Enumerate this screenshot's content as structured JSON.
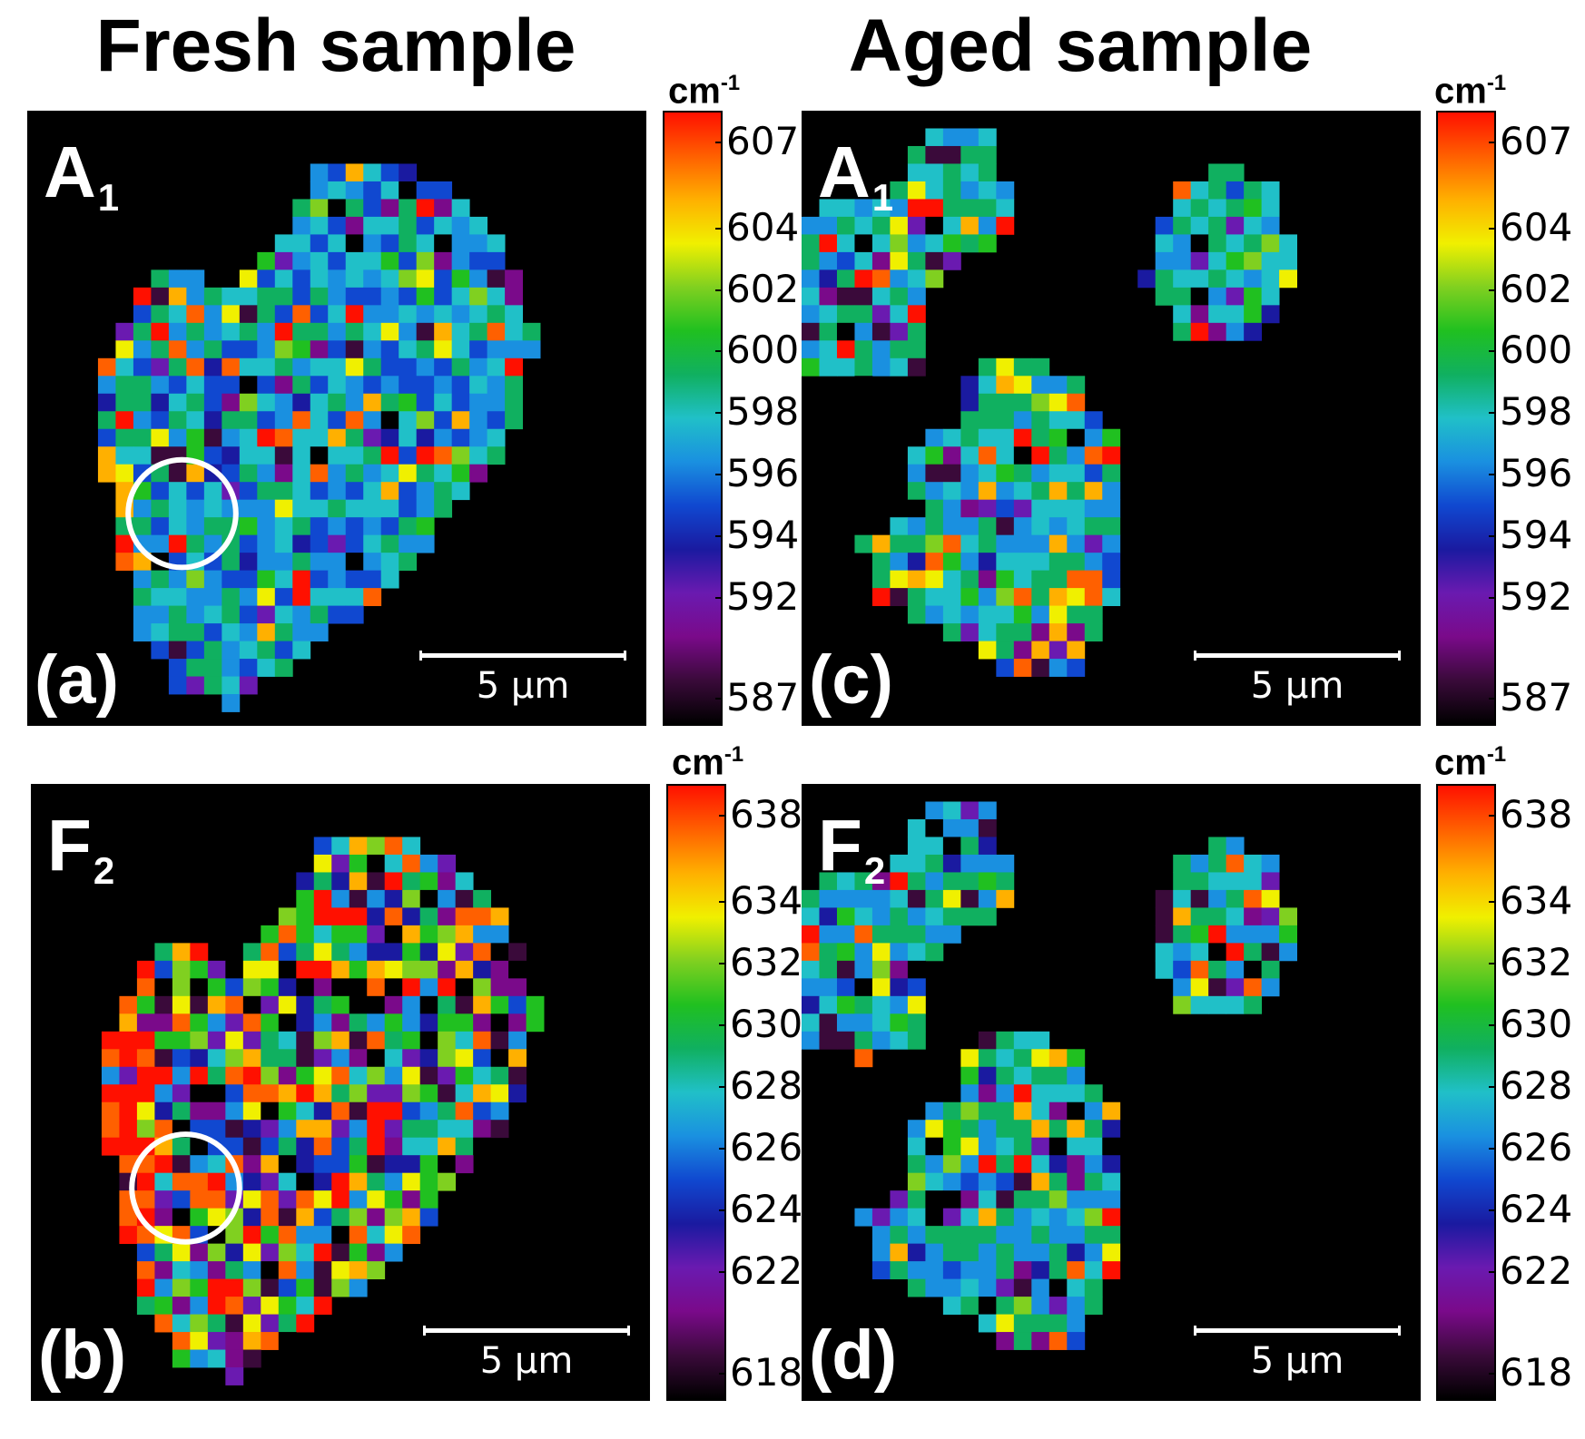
{
  "titles": {
    "fresh": "Fresh sample",
    "aged": "Aged sample"
  },
  "colormap": [
    "#000000",
    "#3a0a3a",
    "#7a0a8a",
    "#6a1ab0",
    "#1a1aa0",
    "#1048d0",
    "#1a90e0",
    "#20c0c8",
    "#10b060",
    "#20c020",
    "#80d020",
    "#f0f000",
    "#ffb000",
    "#ff6000",
    "#ff1000"
  ],
  "chart_data": [
    {
      "type": "heatmap",
      "id": "a",
      "label": "(a)",
      "mode": "A",
      "mode_sub": "1",
      "sample": "Fresh sample",
      "scale_bar": "5 µm",
      "unit": "cm",
      "unit_exp": "-1",
      "colorbar_ticks": [
        "607",
        "604",
        "602",
        "600",
        "598",
        "596",
        "594",
        "592",
        "587"
      ],
      "colorbar_range": [
        587,
        607
      ],
      "circle": true,
      "shape": "fresh",
      "seed": 11
    },
    {
      "type": "heatmap",
      "id": "b",
      "label": "(b)",
      "mode": "F",
      "mode_sub": "2",
      "sample": "Fresh sample",
      "scale_bar": "5 µm",
      "unit": "cm",
      "unit_exp": "-1",
      "colorbar_ticks": [
        "638",
        "634",
        "632",
        "630",
        "628",
        "626",
        "624",
        "622",
        "618"
      ],
      "colorbar_range": [
        618,
        638
      ],
      "circle": true,
      "shape": "fresh",
      "seed": 23
    },
    {
      "type": "heatmap",
      "id": "c",
      "label": "(c)",
      "mode": "A",
      "mode_sub": "1",
      "sample": "Aged sample",
      "scale_bar": "5 µm",
      "unit": "cm",
      "unit_exp": "-1",
      "colorbar_ticks": [
        "607",
        "604",
        "602",
        "600",
        "598",
        "596",
        "594",
        "592",
        "587"
      ],
      "colorbar_range": [
        587,
        607
      ],
      "circle": false,
      "shape": "aged",
      "seed": 37
    },
    {
      "type": "heatmap",
      "id": "d",
      "label": "(d)",
      "mode": "F",
      "mode_sub": "2",
      "sample": "Aged sample",
      "scale_bar": "5 µm",
      "unit": "cm",
      "unit_exp": "-1",
      "colorbar_ticks": [
        "638",
        "634",
        "632",
        "630",
        "628",
        "626",
        "624",
        "622",
        "618"
      ],
      "colorbar_range": [
        618,
        638
      ],
      "circle": false,
      "shape": "aged",
      "seed": 53
    }
  ]
}
